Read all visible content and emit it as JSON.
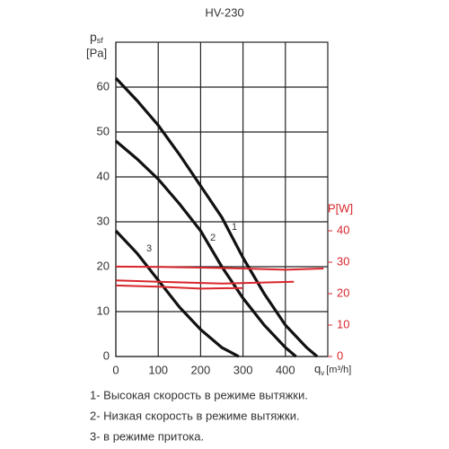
{
  "chart_data": {
    "type": "line",
    "title": "HV-230",
    "y_label": {
      "base": "p",
      "sub": "sf",
      "unit": "[Pa]"
    },
    "x_label": {
      "base": "q",
      "sub": "v",
      "unit": "[m³/h]"
    },
    "y2_label": "P[W]",
    "xlim": [
      0,
      500
    ],
    "xticks": [
      0,
      100,
      200,
      300,
      400
    ],
    "ylim": [
      0,
      70
    ],
    "yticks": [
      0,
      10,
      20,
      30,
      40,
      50,
      60
    ],
    "y2lim": [
      0,
      40
    ],
    "y2ticks": [
      0,
      10,
      20,
      30,
      40
    ],
    "grid": true,
    "series": [
      {
        "name": "1",
        "color": "#111111",
        "x": [
          0,
          50,
          100,
          150,
          200,
          250,
          300,
          350,
          400,
          450,
          475
        ],
        "values": [
          62,
          57,
          51.5,
          45,
          38,
          31,
          22,
          14,
          7,
          2,
          0
        ]
      },
      {
        "name": "2",
        "color": "#111111",
        "x": [
          0,
          50,
          100,
          150,
          200,
          250,
          300,
          350,
          400,
          425
        ],
        "values": [
          48,
          44,
          39.5,
          34,
          28,
          20,
          13,
          7,
          2,
          0
        ]
      },
      {
        "name": "3",
        "color": "#111111",
        "x": [
          0,
          50,
          100,
          150,
          200,
          250,
          290
        ],
        "values": [
          28,
          23,
          17,
          11,
          6,
          2,
          0
        ]
      },
      {
        "color": "#d9262c",
        "axis": "y2",
        "x": [
          0,
          100,
          200,
          300,
          400,
          490
        ],
        "values": [
          28.6,
          28.5,
          28.3,
          28,
          27.6,
          28
        ]
      },
      {
        "color": "#d9262c",
        "axis": "y2",
        "x": [
          0,
          100,
          250,
          420
        ],
        "values": [
          24.2,
          23.8,
          23.2,
          23.8
        ]
      },
      {
        "color": "#d9262c",
        "axis": "y2",
        "x": [
          0,
          100,
          200,
          300
        ],
        "values": [
          22.6,
          22.2,
          21.6,
          21.8
        ]
      }
    ],
    "notes": [
      "1- Высокая скорость в режиме вытяжки.",
      "2- Низкая скорость в режиме вытяжки.",
      "3- в режиме притока."
    ]
  }
}
